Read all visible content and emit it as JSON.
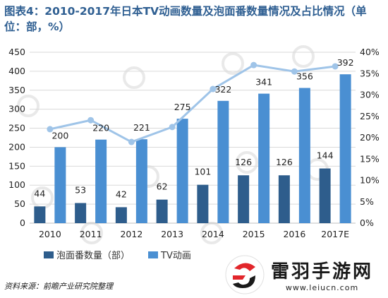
{
  "title": "图表4：2010-2017年日本TV动画数量及泡面番数量情况及占比情况（单位：部，%）",
  "source": "资料来源：前瞻产业研究院整理",
  "brand": {
    "name": "雷羽手游网",
    "url": "www.leiucn.com"
  },
  "chart_data": {
    "type": "bar",
    "categories": [
      "2010",
      "2011",
      "2012",
      "2013",
      "2014",
      "2015",
      "2016",
      "2017E"
    ],
    "series": [
      {
        "name": "泡面番数量（部）",
        "type": "bar",
        "axis": "left",
        "color": "#2e5d8c",
        "values": [
          44,
          53,
          42,
          62,
          101,
          126,
          126,
          144
        ]
      },
      {
        "name": "TV动画",
        "type": "bar",
        "axis": "left",
        "color": "#4a8fd2",
        "values": [
          200,
          220,
          221,
          275,
          322,
          341,
          356,
          392
        ]
      },
      {
        "name": "",
        "type": "line",
        "axis": "right",
        "color": "#9fc4e8",
        "values": [
          22,
          24.1,
          19,
          22.5,
          31.4,
          37,
          35.5,
          36.7
        ]
      }
    ],
    "yleft": {
      "min": 0,
      "max": 450,
      "step": 50,
      "ticks": [
        "0",
        "50",
        "100",
        "150",
        "200",
        "250",
        "300",
        "350",
        "400",
        "450"
      ]
    },
    "yright": {
      "min": 0,
      "max": 40,
      "step": 5,
      "ticks": [
        "0%",
        "5%",
        "10%",
        "15%",
        "20%",
        "25%",
        "30%",
        "35%",
        "40%"
      ]
    },
    "grid": true,
    "legend": "bottom-left"
  }
}
